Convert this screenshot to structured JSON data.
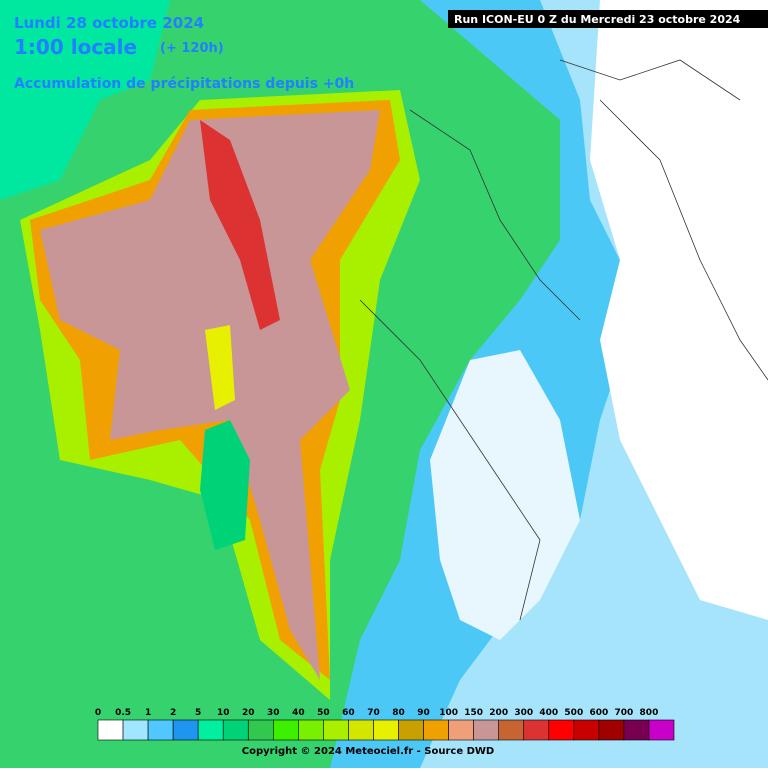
{
  "header": {
    "date": "Lundi 28 octobre 2024",
    "time": "1:00 locale",
    "lead": "(+ 120h)",
    "subtitle": "Accumulation de précipitations depuis +0h",
    "run": "Run ICON-EU 0 Z du Mercredi 23 octobre 2024"
  },
  "legend": {
    "labels": [
      0,
      0.5,
      1,
      2,
      5,
      10,
      20,
      30,
      40,
      50,
      60,
      70,
      80,
      90,
      100,
      150,
      200,
      300,
      400,
      500,
      600,
      700,
      800
    ],
    "colors": [
      "#ffffff",
      "#a0e6ff",
      "#50c8ff",
      "#1e96f0",
      "#00f0a0",
      "#00d278",
      "#32c850",
      "#3cf000",
      "#78f000",
      "#a8f000",
      "#d2e600",
      "#e6f000",
      "#c8a000",
      "#f0a000",
      "#f0a078",
      "#c89696",
      "#c86432",
      "#dc3232",
      "#ff0000",
      "#c80000",
      "#a00000",
      "#780050",
      "#c800c8"
    ]
  },
  "footer": {
    "copyright": "Copyright © 2024 Meteociel.fr - Source DWD"
  }
}
